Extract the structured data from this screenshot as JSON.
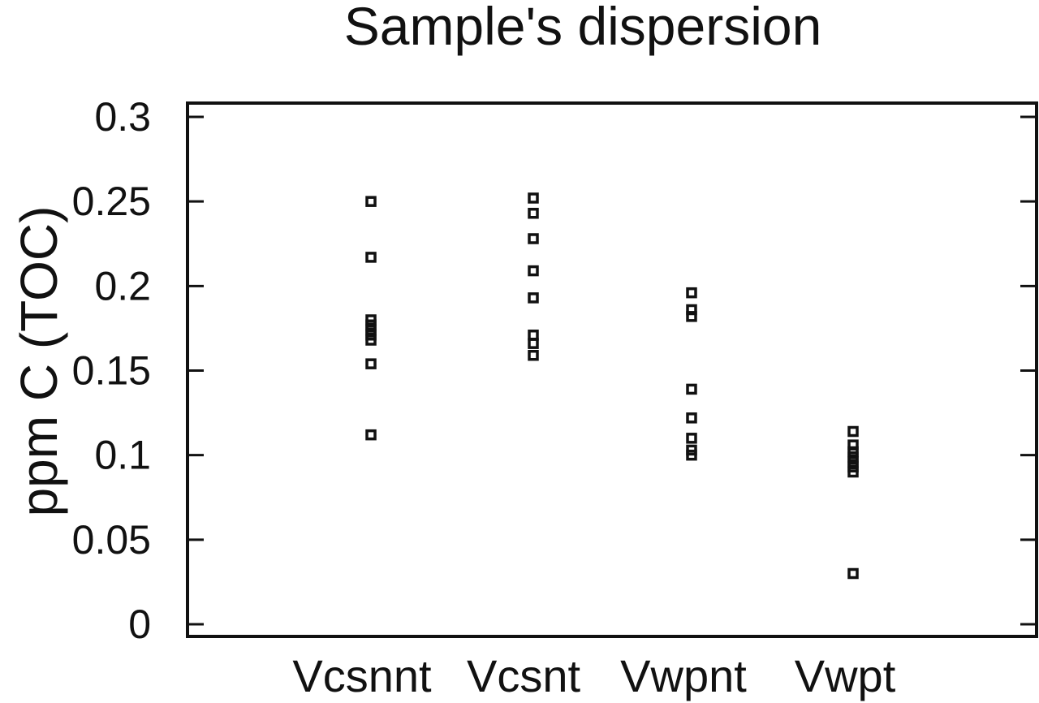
{
  "chart_data": {
    "type": "scatter",
    "title": "Sample's dispersion",
    "xlabel": "",
    "ylabel": "ppm C (TOC)",
    "categories": [
      "Vcsnnt",
      "Vcsnt",
      "Vwpnt",
      "Vwpt"
    ],
    "ylim": [
      -0.01,
      0.31
    ],
    "yticks": [
      0,
      0.05,
      0.1,
      0.15,
      0.2,
      0.25,
      0.3
    ],
    "ytick_labels": [
      "0",
      "0.05",
      "0.1",
      "0.15",
      "0.2",
      "0.25",
      "0.3"
    ],
    "grid": false,
    "legend": "none",
    "points": [
      {
        "category": "Vcsnnt",
        "values": [
          0.25,
          0.217,
          0.18,
          0.177,
          0.174,
          0.171,
          0.168,
          0.154,
          0.112
        ]
      },
      {
        "category": "Vcsnt",
        "values": [
          0.252,
          0.243,
          0.228,
          0.209,
          0.193,
          0.171,
          0.166,
          0.159
        ]
      },
      {
        "category": "Vwpnt",
        "values": [
          0.196,
          0.186,
          0.182,
          0.139,
          0.122,
          0.11,
          0.103,
          0.1
        ]
      },
      {
        "category": "Vwpt",
        "values": [
          0.114,
          0.106,
          0.102,
          0.099,
          0.096,
          0.093,
          0.09,
          0.03
        ]
      }
    ]
  }
}
